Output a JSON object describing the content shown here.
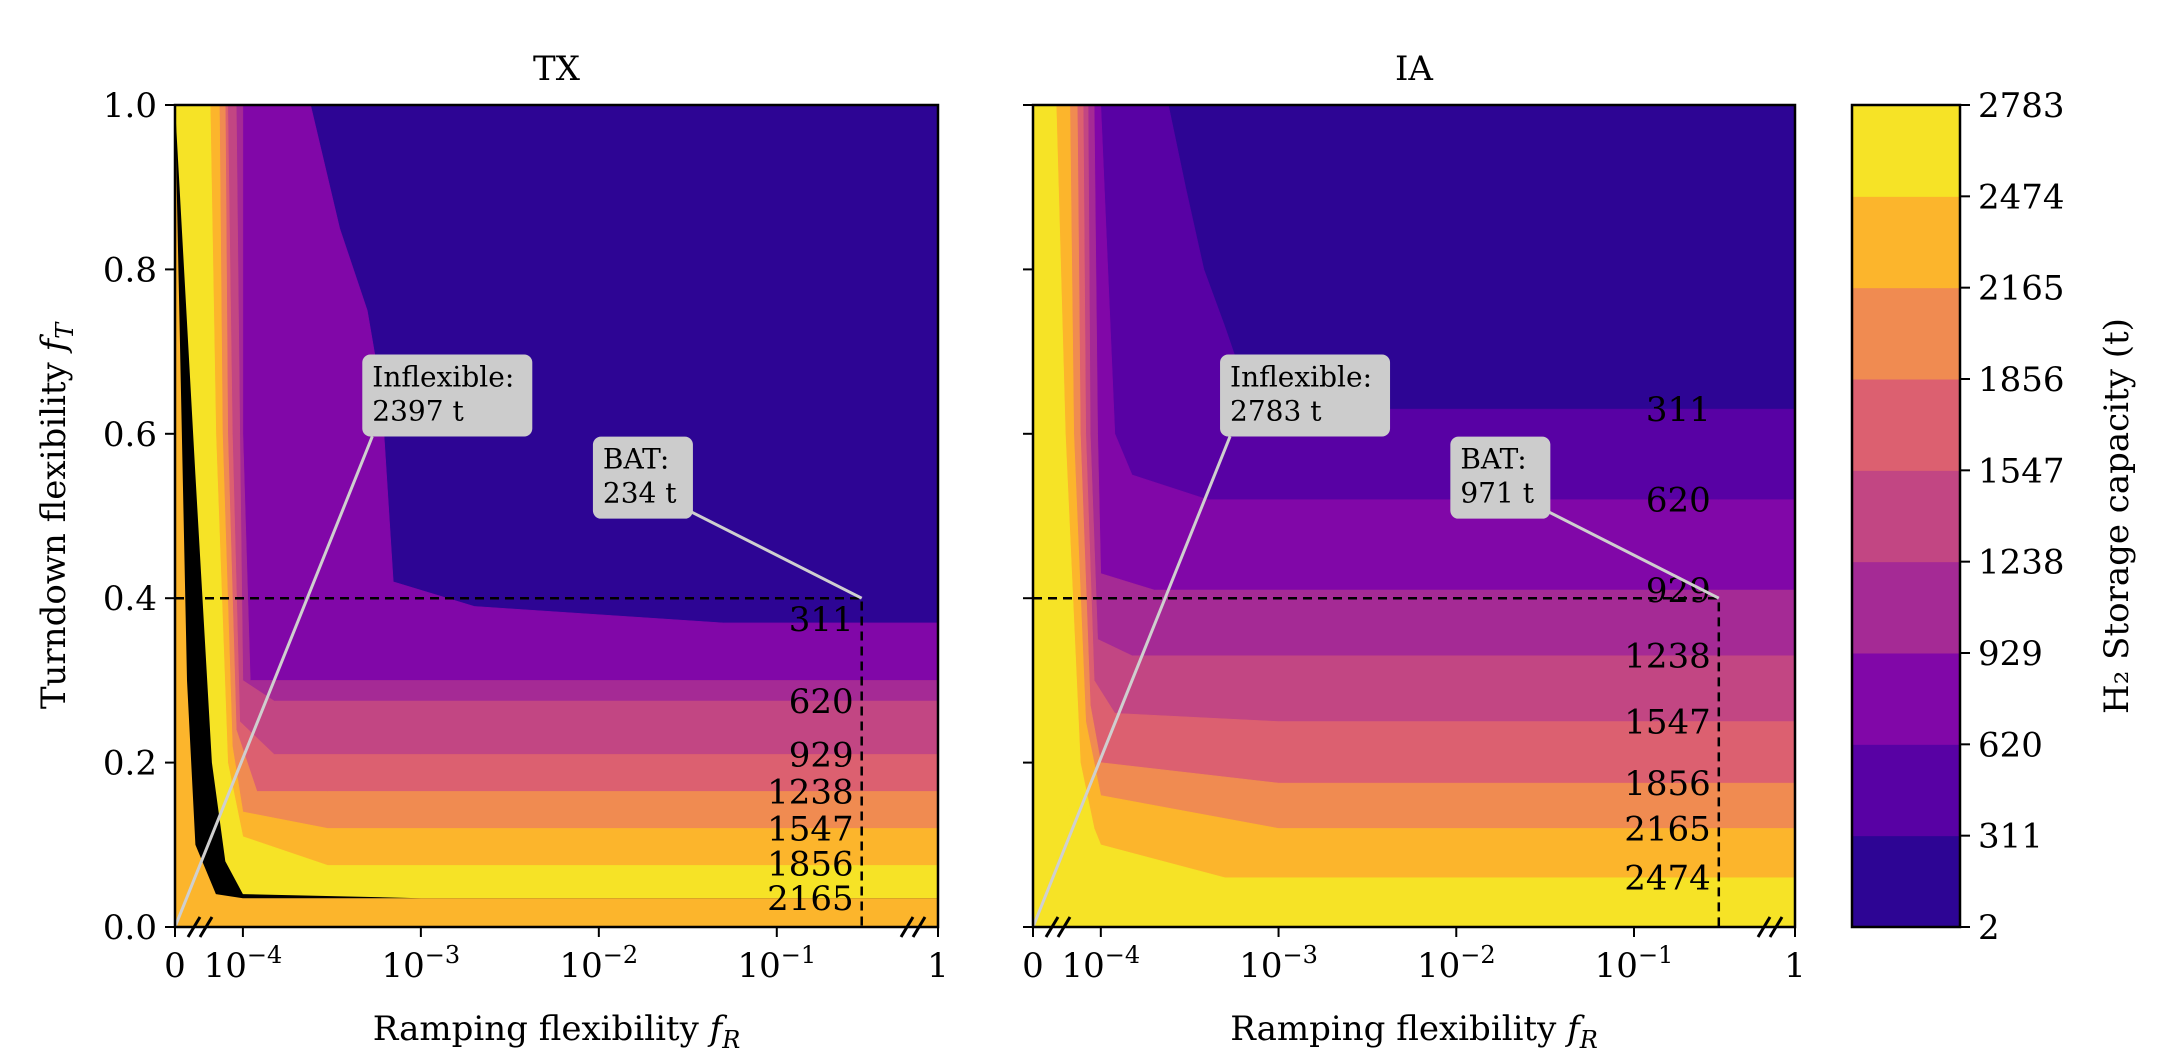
{
  "chart_data": {
    "type": "filled-contour",
    "colorbar": {
      "label": "H₂ Storage capacity (t)",
      "levels": [
        2,
        311,
        620,
        929,
        1238,
        1547,
        1856,
        2165,
        2474,
        2783
      ],
      "tick_labels": [
        "2",
        "311",
        "620",
        "929",
        "1238",
        "1547",
        "1856",
        "2165",
        "2474",
        "2783"
      ],
      "colors": [
        "#2d0594",
        "#5801a4",
        "#8107a8",
        "#a52a95",
        "#c24683",
        "#dc6070",
        "#f08b51",
        "#fcb52c",
        "#f6e326"
      ]
    },
    "x_axis": {
      "label": "Ramping flexibility",
      "symbol": "f",
      "subscript": "R",
      "scale": "broken-log",
      "tick_values": [
        0,
        0.0001,
        0.001,
        0.01,
        0.1,
        1
      ],
      "tick_labels": [
        {
          "base": "0",
          "exp": ""
        },
        {
          "base": "10",
          "exp": "−4"
        },
        {
          "base": "10",
          "exp": "−3"
        },
        {
          "base": "10",
          "exp": "−2"
        },
        {
          "base": "10",
          "exp": "−1"
        },
        {
          "base": "1",
          "exp": ""
        }
      ]
    },
    "y_axis": {
      "label": "Turndown flexibility",
      "symbol": "f",
      "subscript": "T",
      "range": [
        0,
        1
      ],
      "tick_values": [
        0,
        0.2,
        0.4,
        0.6,
        0.8,
        1.0
      ],
      "tick_labels": [
        "0.0",
        "0.2",
        "0.4",
        "0.6",
        "0.8",
        "1.0"
      ]
    },
    "panels": [
      {
        "title": "TX",
        "bat_point": {
          "fR": 0.3,
          "fT": 0.4
        },
        "annotations": [
          {
            "line1": "Inflexible:",
            "line2": "2397 t",
            "point": {
              "fR": 0,
              "fT": 0
            },
            "box": {
              "fR": 0.0005,
              "fT": 0.66
            }
          },
          {
            "line1": "BAT:",
            "line2": "234 t",
            "point": {
              "fR": 0.3,
              "fT": 0.4
            },
            "box": {
              "fR": 0.012,
              "fT": 0.56
            }
          }
        ],
        "contour_labels": [
          {
            "text": "311",
            "fT": 0.375
          },
          {
            "text": "620",
            "fT": 0.275
          },
          {
            "text": "929",
            "fT": 0.21
          },
          {
            "text": "1238",
            "fT": 0.165
          },
          {
            "text": "1547",
            "fT": 0.12
          },
          {
            "text": "1856",
            "fT": 0.077
          },
          {
            "text": "2165",
            "fT": 0.035
          }
        ],
        "regions": [
          {
            "level": 8,
            "boundary": [
              [
                0,
                1
              ],
              [
                1e-05,
                1
              ],
              [
                2e-05,
                0.55
              ],
              [
                3.5e-05,
                0.2
              ],
              [
                5.5e-05,
                0.08
              ],
              [
                0.0001,
                0.04
              ],
              [
                0.001,
                0.035
              ],
              [
                0.3,
                0.035
              ],
              [
                1,
                0.035
              ]
            ]
          },
          {
            "level": 7,
            "boundary": [
              [
                2.5e-05,
                1
              ],
              [
                3.3e-05,
                1
              ],
              [
                4e-05,
                0.6
              ],
              [
                6e-05,
                0.2
              ],
              [
                0.0001,
                0.11
              ],
              [
                0.0003,
                0.075
              ],
              [
                0.001,
                0.075
              ],
              [
                0.3,
                0.075
              ],
              [
                1,
                0.075
              ]
            ]
          },
          {
            "level": 6,
            "boundary": [
              [
                3.5e-05,
                1
              ],
              [
                4.5e-05,
                1
              ],
              [
                5e-05,
                0.6
              ],
              [
                7e-05,
                0.22
              ],
              [
                0.0001,
                0.14
              ],
              [
                0.0003,
                0.12
              ],
              [
                0.001,
                0.12
              ],
              [
                0.3,
                0.12
              ],
              [
                1,
                0.12
              ]
            ]
          },
          {
            "level": 5,
            "boundary": [
              [
                4e-05,
                1
              ],
              [
                5.5e-05,
                1
              ],
              [
                6e-05,
                0.6
              ],
              [
                8e-05,
                0.24
              ],
              [
                0.00012,
                0.165
              ],
              [
                0.0003,
                0.165
              ],
              [
                0.001,
                0.165
              ],
              [
                0.3,
                0.165
              ],
              [
                1,
                0.165
              ]
            ]
          },
          {
            "level": 4,
            "boundary": [
              [
                5e-05,
                1
              ],
              [
                6e-05,
                1
              ],
              [
                7e-05,
                0.6
              ],
              [
                9e-05,
                0.25
              ],
              [
                0.00015,
                0.21
              ],
              [
                0.001,
                0.21
              ],
              [
                0.3,
                0.21
              ],
              [
                1,
                0.21
              ]
            ]
          },
          {
            "level": 3,
            "boundary": [
              [
                6.5e-05,
                1
              ],
              [
                8e-05,
                1
              ],
              [
                9e-05,
                0.6
              ],
              [
                0.0001,
                0.3
              ],
              [
                0.00015,
                0.275
              ],
              [
                0.001,
                0.275
              ],
              [
                0.3,
                0.275
              ],
              [
                1,
                0.275
              ]
            ]
          },
          {
            "level": 2,
            "boundary": [
              [
                8e-05,
                1
              ],
              [
                0.0001,
                1
              ],
              [
                0.0001,
                0.6
              ],
              [
                0.00011,
                0.3
              ],
              [
                0.00015,
                0.3
              ],
              [
                0.0002,
                0.3
              ],
              [
                0.001,
                0.3
              ],
              [
                0.3,
                0.3
              ],
              [
                1,
                0.3
              ]
            ]
          },
          {
            "level": 1,
            "boundary": [
              [
                0.0001,
                1
              ],
              [
                0.00024,
                1
              ],
              [
                0.00035,
                0.85
              ],
              [
                0.0005,
                0.75
              ],
              [
                0.0006,
                0.65
              ],
              [
                0.0007,
                0.42
              ],
              [
                0.002,
                0.39
              ],
              [
                0.05,
                0.37
              ],
              [
                0.3,
                0.37
              ],
              [
                1,
                0.37
              ]
            ]
          }
        ]
      },
      {
        "title": "IA",
        "bat_point": {
          "fR": 0.3,
          "fT": 0.4
        },
        "annotations": [
          {
            "line1": "Inflexible:",
            "line2": "2783 t",
            "point": {
              "fR": 0,
              "fT": 0
            },
            "box": {
              "fR": 0.0005,
              "fT": 0.66
            }
          },
          {
            "line1": "BAT:",
            "line2": "971 t",
            "point": {
              "fR": 0.3,
              "fT": 0.4
            },
            "box": {
              "fR": 0.012,
              "fT": 0.56
            }
          }
        ],
        "contour_labels": [
          {
            "text": "311",
            "fT": 0.63
          },
          {
            "text": "620",
            "fT": 0.52
          },
          {
            "text": "929",
            "fT": 0.41
          },
          {
            "text": "1238",
            "fT": 0.33
          },
          {
            "text": "1547",
            "fT": 0.25
          },
          {
            "text": "1856",
            "fT": 0.175
          },
          {
            "text": "2165",
            "fT": 0.12
          },
          {
            "text": "2474",
            "fT": 0.06
          }
        ],
        "regions": [
          {
            "level": 7,
            "boundary": [
              [
                1.8e-05,
                1
              ],
              [
                2.2e-05,
                1
              ],
              [
                3e-05,
                0.6
              ],
              [
                5e-05,
                0.2
              ],
              [
                8e-05,
                0.12
              ],
              [
                0.0001,
                0.1
              ],
              [
                0.0005,
                0.06
              ],
              [
                0.3,
                0.06
              ],
              [
                1,
                0.06
              ]
            ]
          },
          {
            "level": 6,
            "boundary": [
              [
                3e-05,
                1
              ],
              [
                3.5e-05,
                1
              ],
              [
                4e-05,
                0.6
              ],
              [
                6e-05,
                0.25
              ],
              [
                0.0001,
                0.16
              ],
              [
                0.001,
                0.12
              ],
              [
                0.3,
                0.12
              ],
              [
                1,
                0.12
              ]
            ]
          },
          {
            "level": 5,
            "boundary": [
              [
                3.8e-05,
                1
              ],
              [
                4.5e-05,
                1
              ],
              [
                5e-05,
                0.6
              ],
              [
                7e-05,
                0.27
              ],
              [
                0.0001,
                0.2
              ],
              [
                0.001,
                0.175
              ],
              [
                0.3,
                0.175
              ],
              [
                1,
                0.175
              ]
            ]
          },
          {
            "level": 4,
            "boundary": [
              [
                4.5e-05,
                1
              ],
              [
                5.5e-05,
                1
              ],
              [
                6e-05,
                0.6
              ],
              [
                8e-05,
                0.3
              ],
              [
                0.00012,
                0.26
              ],
              [
                0.001,
                0.25
              ],
              [
                0.3,
                0.25
              ],
              [
                1,
                0.25
              ]
            ]
          },
          {
            "level": 3,
            "boundary": [
              [
                5.5e-05,
                1
              ],
              [
                6.5e-05,
                1
              ],
              [
                7e-05,
                0.6
              ],
              [
                9e-05,
                0.35
              ],
              [
                0.00015,
                0.33
              ],
              [
                0.001,
                0.33
              ],
              [
                0.3,
                0.33
              ],
              [
                1,
                0.33
              ]
            ]
          },
          {
            "level": 2,
            "boundary": [
              [
                7e-05,
                1
              ],
              [
                8e-05,
                1
              ],
              [
                9e-05,
                0.6
              ],
              [
                0.0001,
                0.43
              ],
              [
                0.0002,
                0.41
              ],
              [
                0.001,
                0.41
              ],
              [
                0.3,
                0.41
              ],
              [
                1,
                0.41
              ]
            ]
          },
          {
            "level": 1,
            "boundary": [
              [
                0.0001,
                1
              ],
              [
                0.0001,
                1
              ],
              [
                0.00012,
                0.6
              ],
              [
                0.00015,
                0.55
              ],
              [
                0.0004,
                0.52
              ],
              [
                0.001,
                0.52
              ],
              [
                0.3,
                0.52
              ],
              [
                1,
                0.52
              ]
            ]
          },
          {
            "level": 0,
            "boundary": [
              [
                0.0001,
                1
              ],
              [
                0.00024,
                1
              ],
              [
                0.0003,
                0.9
              ],
              [
                0.00038,
                0.8
              ],
              [
                0.0005,
                0.73
              ],
              [
                0.0006,
                0.68
              ],
              [
                0.0008,
                0.63
              ],
              [
                0.002,
                0.63
              ],
              [
                0.05,
                0.63
              ],
              [
                0.3,
                0.63
              ],
              [
                1,
                0.63
              ]
            ]
          }
        ]
      }
    ]
  }
}
